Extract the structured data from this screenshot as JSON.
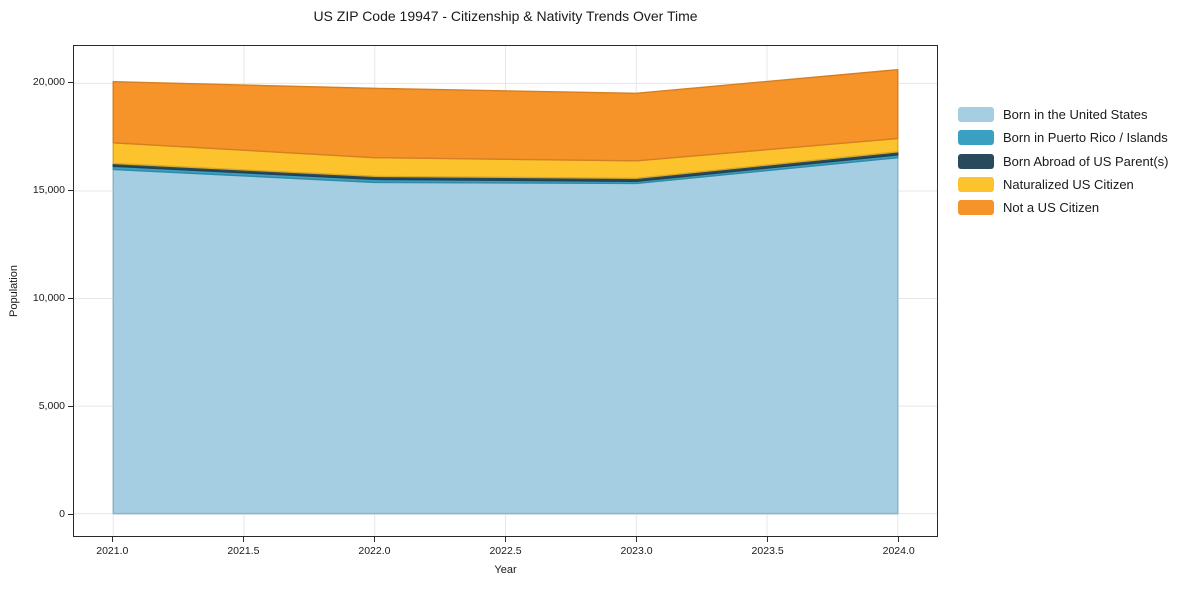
{
  "chart_data": {
    "type": "area",
    "stacked": true,
    "title": "US ZIP Code 19947 - Citizenship & Nativity Trends Over Time",
    "xlabel": "Year",
    "ylabel": "Population",
    "x": [
      2021,
      2022,
      2023,
      2024
    ],
    "series": [
      {
        "name": "Born in the United States",
        "color": "#a5cee3",
        "values": [
          16000,
          15400,
          15350,
          16550
        ]
      },
      {
        "name": "Born in Puerto Rico / Islands",
        "color": "#39a0c2",
        "values": [
          150,
          140,
          100,
          130
        ]
      },
      {
        "name": "Born Abroad of US Parent(s)",
        "color": "#294a5c",
        "values": [
          130,
          140,
          140,
          140
        ]
      },
      {
        "name": "Naturalized US Citizen",
        "color": "#fcc32d",
        "values": [
          960,
          870,
          810,
          620
        ]
      },
      {
        "name": "Not a US Citizen",
        "color": "#f79429",
        "values": [
          2840,
          3220,
          3140,
          3200
        ]
      }
    ],
    "totals": [
      20080,
      19770,
      19540,
      20640
    ],
    "xticks": [
      2021.0,
      2021.5,
      2022.0,
      2022.5,
      2023.0,
      2023.5,
      2024.0
    ],
    "xtick_labels": [
      "2021.0",
      "2021.5",
      "2022.0",
      "2022.5",
      "2023.0",
      "2023.5",
      "2024.0"
    ],
    "yticks": [
      0,
      5000,
      10000,
      15000,
      20000
    ],
    "ytick_labels": [
      "0",
      "5,000",
      "10,000",
      "15,000",
      "20,000"
    ],
    "xlim": [
      2020.85,
      2024.15
    ],
    "ylim": [
      -1040,
      21740
    ],
    "grid": true,
    "grid_color": "#e7e7e7",
    "axis_color": "#2b2b2b",
    "legend_position": "right-outside"
  }
}
